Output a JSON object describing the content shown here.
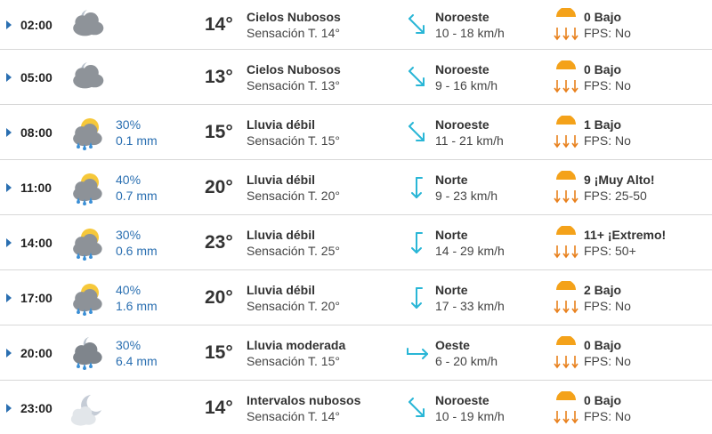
{
  "colors": {
    "accent": "#2a6fb1",
    "wind_arrow": "#29b6d6",
    "sun": "#f4a21a",
    "uv_arrow": "#e8801c",
    "divider": "#d8d8d8"
  },
  "rows": [
    {
      "hour": "02:00",
      "icon": "cloudy-night-icon",
      "precip_prob": "",
      "precip_amount": "",
      "temp": "14°",
      "condition": "Cielos Nubosos",
      "feels": "Sensación T. 14°",
      "wind_dir": "Noroeste",
      "wind_speed": "10 - 18 km/h",
      "wind_icon": "northwest-wind-arrow-icon",
      "uv": "0 Bajo",
      "fps": "FPS: No",
      "uv_icon": "uv-sun-icon"
    },
    {
      "hour": "05:00",
      "icon": "cloudy-night-icon",
      "precip_prob": "",
      "precip_amount": "",
      "temp": "13°",
      "condition": "Cielos Nubosos",
      "feels": "Sensación T. 13°",
      "wind_dir": "Noroeste",
      "wind_speed": "9 - 16 km/h",
      "wind_icon": "northwest-wind-arrow-icon",
      "uv": "0 Bajo",
      "fps": "FPS: No",
      "uv_icon": "uv-sun-icon"
    },
    {
      "hour": "08:00",
      "icon": "sun-cloud-rain-icon",
      "precip_prob": "30%",
      "precip_amount": "0.1 mm",
      "temp": "15°",
      "condition": "Lluvia débil",
      "feels": "Sensación T. 15°",
      "wind_dir": "Noroeste",
      "wind_speed": "11 - 21 km/h",
      "wind_icon": "northwest-wind-arrow-icon",
      "uv": "1 Bajo",
      "fps": "FPS: No",
      "uv_icon": "uv-sun-icon"
    },
    {
      "hour": "11:00",
      "icon": "sun-cloud-rain-icon",
      "precip_prob": "40%",
      "precip_amount": "0.7 mm",
      "temp": "20°",
      "condition": "Lluvia débil",
      "feels": "Sensación T. 20°",
      "wind_dir": "Norte",
      "wind_speed": "9 - 23 km/h",
      "wind_icon": "north-wind-arrow-icon",
      "uv": "9 ¡Muy Alto!",
      "fps": "FPS: 25-50",
      "uv_icon": "uv-sun-icon"
    },
    {
      "hour": "14:00",
      "icon": "sun-cloud-rain-icon",
      "precip_prob": "30%",
      "precip_amount": "0.6 mm",
      "temp": "23°",
      "condition": "Lluvia débil",
      "feels": "Sensación T. 25°",
      "wind_dir": "Norte",
      "wind_speed": "14 - 29 km/h",
      "wind_icon": "north-wind-arrow-icon",
      "uv": "11+ ¡Extremo!",
      "fps": "FPS: 50+",
      "uv_icon": "uv-sun-icon"
    },
    {
      "hour": "17:00",
      "icon": "sun-cloud-rain-icon",
      "precip_prob": "40%",
      "precip_amount": "1.6 mm",
      "temp": "20°",
      "condition": "Lluvia débil",
      "feels": "Sensación T. 20°",
      "wind_dir": "Norte",
      "wind_speed": "17 - 33 km/h",
      "wind_icon": "north-wind-arrow-icon",
      "uv": "2 Bajo",
      "fps": "FPS: No",
      "uv_icon": "uv-sun-icon"
    },
    {
      "hour": "20:00",
      "icon": "night-cloud-rain-icon",
      "precip_prob": "30%",
      "precip_amount": "6.4 mm",
      "temp": "15°",
      "condition": "Lluvia moderada",
      "feels": "Sensación T. 15°",
      "wind_dir": "Oeste",
      "wind_speed": "6 - 20 km/h",
      "wind_icon": "west-wind-arrow-icon",
      "uv": "0 Bajo",
      "fps": "FPS: No",
      "uv_icon": "uv-sun-icon"
    },
    {
      "hour": "23:00",
      "icon": "moon-cloud-icon",
      "precip_prob": "",
      "precip_amount": "",
      "temp": "14°",
      "condition": "Intervalos nubosos",
      "feels": "Sensación T. 14°",
      "wind_dir": "Noroeste",
      "wind_speed": "10 - 19 km/h",
      "wind_icon": "northwest-wind-arrow-icon",
      "uv": "0 Bajo",
      "fps": "FPS: No",
      "uv_icon": "uv-sun-icon"
    }
  ]
}
